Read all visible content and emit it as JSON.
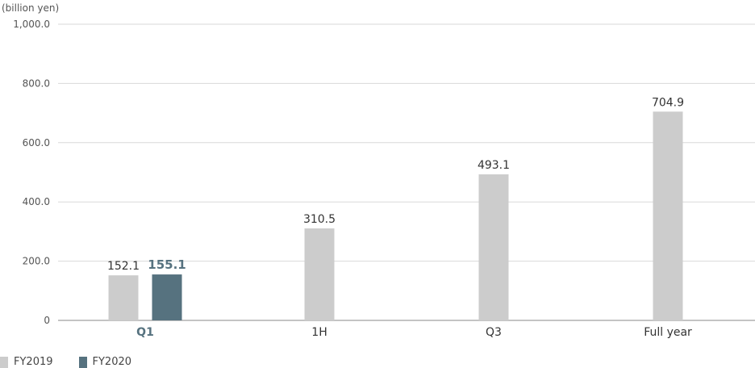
{
  "chart_data": {
    "type": "bar",
    "unit_label": "(billion yen)",
    "categories": [
      "Q1",
      "1H",
      "Q3",
      "Full year"
    ],
    "highlight_category": "Q1",
    "ylim": [
      0,
      1000
    ],
    "yticks": [
      0,
      200,
      400,
      600,
      800,
      1000
    ],
    "ytick_labels": [
      "0",
      "200.0",
      "400.0",
      "600.0",
      "800.0",
      "1,000.0"
    ],
    "grid": true,
    "legend_position": "bottom-left",
    "series": [
      {
        "name": "FY2019",
        "color": "#cccccc",
        "values": [
          152.1,
          310.5,
          493.1,
          704.9
        ],
        "labels": [
          "152.1",
          "310.5",
          "493.1",
          "704.9"
        ]
      },
      {
        "name": "FY2020",
        "color": "#56727f",
        "values": [
          155.1,
          null,
          null,
          null
        ],
        "labels": [
          "155.1",
          "",
          "",
          ""
        ]
      }
    ],
    "colors": {
      "highlight_text": "#56727f",
      "grid": "#d9d9d9",
      "axis": "#888888"
    }
  }
}
